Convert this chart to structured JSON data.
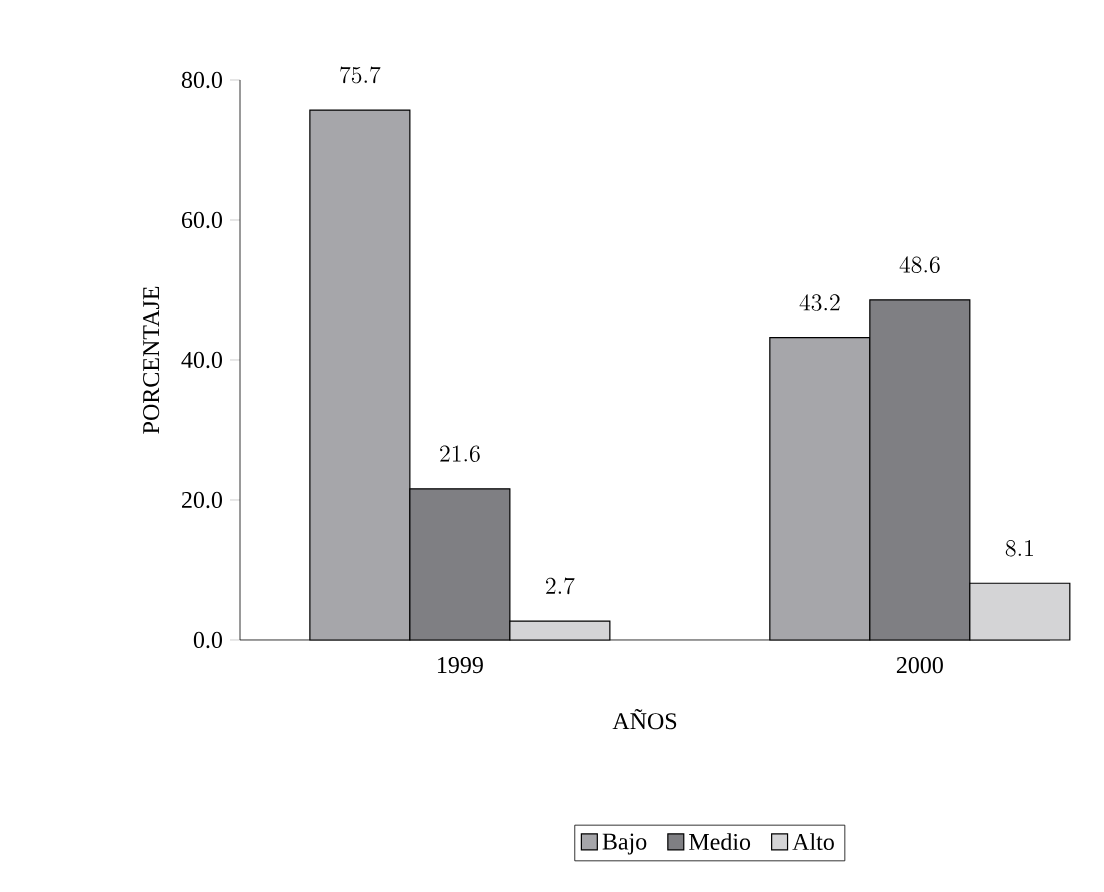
{
  "chart_data": {
    "type": "bar",
    "xlabel": "AÑOS",
    "ylabel": "PORCENTAJE",
    "categories": [
      "1999",
      "2000"
    ],
    "series": [
      {
        "name": "Bajo",
        "color": "#a6a6aa",
        "values": [
          75.7,
          43.2
        ]
      },
      {
        "name": "Medio",
        "color": "#7f7f83",
        "values": [
          21.6,
          48.6
        ]
      },
      {
        "name": "Alto",
        "color": "#d4d4d6",
        "values": [
          2.7,
          8.1
        ]
      }
    ],
    "ylim": [
      0,
      80
    ],
    "yticks": [
      {
        "value": 0,
        "label": "0.0"
      },
      {
        "value": 20,
        "label": "20.0"
      },
      {
        "value": 40,
        "label": "40.0"
      },
      {
        "value": 60,
        "label": "60.0"
      },
      {
        "value": 80,
        "label": "80.0"
      }
    ],
    "data_labels": true,
    "grid": false,
    "legend": "bottom"
  }
}
